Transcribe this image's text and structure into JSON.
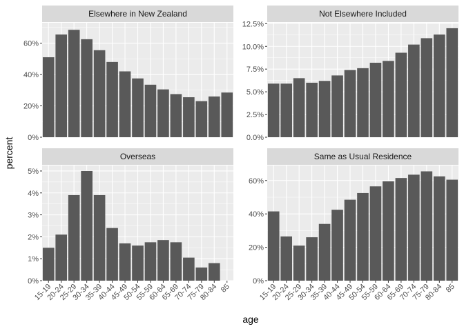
{
  "colors": {
    "panel_bg": "#ebebeb",
    "strip_bg": "#d9d9d9",
    "grid_major": "#ffffff",
    "bar": "#595959",
    "tick_text": "#4d4d4d"
  },
  "chart_data": {
    "type": "bar",
    "layout": "facet-grid 2x2",
    "xlabel": "age",
    "ylabel": "percent",
    "categories": [
      "15-19",
      "20-24",
      "25-29",
      "30-34",
      "35-39",
      "40-44",
      "45-49",
      "50-54",
      "55-59",
      "60-64",
      "65-69",
      "70-74",
      "75-79",
      "80-84",
      "85"
    ],
    "panels": [
      {
        "title": "Elsewhere in New Zealand",
        "values": [
          51,
          65.5,
          68.5,
          62.5,
          55.5,
          48,
          42,
          37.5,
          33.5,
          30.5,
          27.5,
          25.5,
          23,
          26,
          28.5
        ],
        "ylim": [
          0,
          73
        ],
        "ticks": [
          0,
          20,
          40,
          60
        ],
        "tick_labels": [
          "0%",
          "20%",
          "40%",
          "60%"
        ]
      },
      {
        "title": "Not Elsewhere Included",
        "values": [
          5.9,
          5.9,
          6.5,
          6.0,
          6.2,
          6.8,
          7.4,
          7.6,
          8.2,
          8.4,
          9.3,
          10.2,
          10.9,
          11.3,
          12.0
        ],
        "ylim": [
          0,
          12.6
        ],
        "ticks": [
          0,
          2.5,
          5,
          7.5,
          10,
          12.5
        ],
        "tick_labels": [
          "0.0%",
          "2.5%",
          "5.0%",
          "7.5%",
          "10.0%",
          "12.5%"
        ]
      },
      {
        "title": "Overseas",
        "values": [
          1.5,
          2.1,
          3.9,
          5.0,
          3.9,
          2.4,
          1.7,
          1.6,
          1.75,
          1.85,
          1.75,
          1.05,
          0.6,
          0.8,
          0
        ],
        "ylim": [
          0,
          5.25
        ],
        "ticks": [
          0,
          1,
          2,
          3,
          4,
          5
        ],
        "tick_labels": [
          "0%",
          "1%",
          "2%",
          "3%",
          "4%",
          "5%"
        ]
      },
      {
        "title": "Same as Usual Residence",
        "values": [
          41.5,
          26.5,
          21,
          26,
          34,
          42.5,
          48.5,
          52.5,
          56.5,
          59.5,
          61.5,
          63.5,
          65.5,
          62.5,
          60.5
        ],
        "ylim": [
          0,
          69
        ],
        "ticks": [
          0,
          20,
          40,
          60
        ],
        "tick_labels": [
          "0%",
          "20%",
          "40%",
          "60%"
        ]
      }
    ],
    "grid": true,
    "legend": "none"
  }
}
